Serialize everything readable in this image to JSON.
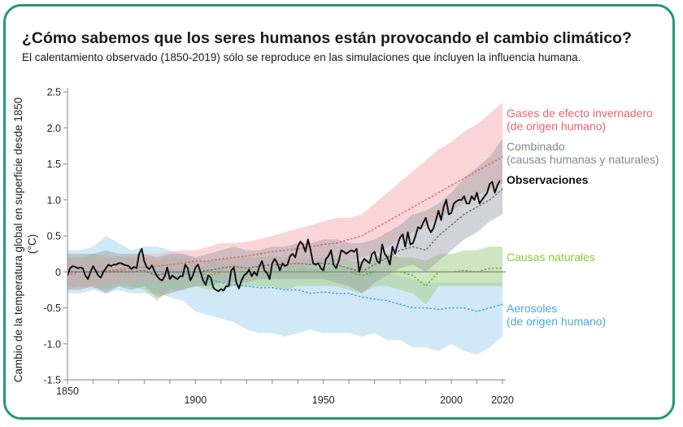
{
  "header": {
    "title": "¿Cómo sabemos que los seres humanos están provocando el cambio climático?",
    "subtitle": "El calentamiento observado (1850-2019) sólo se reproduce en las simulaciones que incluyen la influencia humana."
  },
  "colors": {
    "frame": "#23967a",
    "ghg": "#e8646b",
    "combined": "#7f8a93",
    "observations": "#111111",
    "natural": "#8dc63f",
    "aerosols": "#4aa8e0"
  },
  "chart_data": {
    "type": "line",
    "title": "¿Cómo sabemos que los seres humanos están provocando el cambio climático?",
    "xlabel": "",
    "ylabel_line1": "Cambio de la temperatura global en superficie desde 1850",
    "ylabel_line2": "(°C)",
    "xlim": [
      1850,
      2020
    ],
    "ylim": [
      -1.5,
      2.5
    ],
    "xticks": [
      1850,
      1900,
      1950,
      2000,
      2020
    ],
    "xminor_step": 10,
    "yticks": [
      -1.5,
      -1.0,
      -0.5,
      0,
      0.5,
      1.0,
      1.5,
      2.0,
      2.5
    ],
    "ytick_labels": [
      "-1.5",
      "-1.0",
      "-0.5",
      "0",
      "0.5",
      "1.0",
      "1.5",
      "2.0",
      "2.5"
    ],
    "grid": false,
    "zero_line": true,
    "band_years": [
      1850,
      1855,
      1860,
      1865,
      1870,
      1875,
      1880,
      1885,
      1890,
      1895,
      1900,
      1905,
      1910,
      1915,
      1920,
      1925,
      1930,
      1935,
      1940,
      1945,
      1950,
      1955,
      1960,
      1965,
      1970,
      1975,
      1980,
      1985,
      1990,
      1995,
      2000,
      2005,
      2010,
      2015,
      2020
    ],
    "series": [
      {
        "key": "aerosols",
        "name": "Aerosoles",
        "name_line2": "(de origen humano)",
        "style": "dotted-mean-with-band",
        "mean": [
          0.0,
          0.0,
          0.0,
          0.0,
          0.0,
          0.0,
          0.0,
          0.0,
          0.0,
          -0.02,
          -0.05,
          -0.1,
          -0.15,
          -0.18,
          -0.2,
          -0.22,
          -0.22,
          -0.25,
          -0.25,
          -0.3,
          -0.28,
          -0.3,
          -0.3,
          -0.35,
          -0.38,
          -0.4,
          -0.45,
          -0.5,
          -0.5,
          -0.52,
          -0.5,
          -0.5,
          -0.55,
          -0.5,
          -0.45
        ],
        "upper": [
          0.3,
          0.3,
          0.35,
          0.5,
          0.4,
          0.3,
          0.35,
          0.35,
          0.3,
          0.25,
          0.2,
          0.15,
          0.12,
          0.1,
          0.1,
          0.08,
          0.1,
          0.08,
          0.1,
          0.05,
          0.05,
          0.05,
          0.05,
          0.02,
          0.02,
          0.0,
          -0.05,
          -0.1,
          -0.15,
          -0.15,
          -0.15,
          -0.15,
          -0.15,
          -0.15,
          -0.15
        ],
        "lower": [
          -0.3,
          -0.3,
          -0.25,
          -0.3,
          -0.25,
          -0.3,
          -0.3,
          -0.3,
          -0.35,
          -0.4,
          -0.55,
          -0.6,
          -0.65,
          -0.7,
          -0.8,
          -0.85,
          -0.85,
          -0.9,
          -0.85,
          -0.8,
          -0.85,
          -0.85,
          -0.85,
          -0.9,
          -0.85,
          -0.95,
          -0.95,
          -1.05,
          -1.05,
          -1.1,
          -1.0,
          -1.1,
          -1.15,
          -1.05,
          -0.9
        ]
      },
      {
        "key": "natural",
        "name": "Causas naturales",
        "style": "dotted-mean-with-band",
        "mean": [
          0.0,
          0.0,
          0.0,
          0.0,
          0.02,
          0.0,
          0.0,
          -0.05,
          0.0,
          0.0,
          0.0,
          -0.05,
          0.0,
          0.0,
          0.0,
          0.0,
          0.0,
          0.0,
          0.0,
          0.0,
          0.0,
          0.0,
          0.0,
          -0.05,
          0.0,
          0.0,
          0.0,
          -0.05,
          -0.2,
          0.0,
          0.0,
          0.02,
          0.0,
          0.05,
          0.05
        ],
        "upper": [
          0.2,
          0.2,
          0.25,
          0.2,
          0.22,
          0.2,
          0.2,
          0.15,
          0.2,
          0.2,
          0.15,
          0.15,
          0.18,
          0.2,
          0.2,
          0.2,
          0.22,
          0.2,
          0.2,
          0.2,
          0.2,
          0.2,
          0.15,
          0.15,
          0.2,
          0.25,
          0.2,
          0.2,
          0.15,
          0.25,
          0.25,
          0.3,
          0.3,
          0.35,
          0.35
        ],
        "lower": [
          -0.2,
          -0.2,
          -0.22,
          -0.25,
          -0.2,
          -0.2,
          -0.25,
          -0.4,
          -0.25,
          -0.25,
          -0.2,
          -0.25,
          -0.25,
          -0.2,
          -0.2,
          -0.2,
          -0.2,
          -0.25,
          -0.2,
          -0.2,
          -0.2,
          -0.2,
          -0.25,
          -0.3,
          -0.2,
          -0.2,
          -0.25,
          -0.3,
          -0.45,
          -0.2,
          -0.2,
          -0.2,
          -0.2,
          -0.2,
          -0.2
        ]
      },
      {
        "key": "ghg",
        "name": "Gases de efecto invernadero",
        "name_line2": "(de origen humano)",
        "style": "dotted-mean-with-band",
        "mean": [
          -0.05,
          0.0,
          0.0,
          0.02,
          0.03,
          0.05,
          0.07,
          0.08,
          0.1,
          0.12,
          0.15,
          0.15,
          0.18,
          0.2,
          0.22,
          0.25,
          0.28,
          0.3,
          0.32,
          0.35,
          0.38,
          0.4,
          0.45,
          0.5,
          0.6,
          0.7,
          0.8,
          0.9,
          1.0,
          1.1,
          1.2,
          1.3,
          1.4,
          1.5,
          1.6
        ],
        "upper": [
          0.15,
          0.18,
          0.2,
          0.22,
          0.2,
          0.22,
          0.25,
          0.25,
          0.28,
          0.3,
          0.3,
          0.35,
          0.4,
          0.4,
          0.42,
          0.45,
          0.5,
          0.55,
          0.6,
          0.65,
          0.7,
          0.75,
          0.75,
          0.8,
          0.95,
          1.1,
          1.25,
          1.4,
          1.55,
          1.7,
          1.8,
          1.95,
          2.05,
          2.2,
          2.35
        ],
        "lower": [
          -0.25,
          -0.2,
          -0.2,
          -0.18,
          -0.15,
          -0.12,
          -0.1,
          -0.1,
          -0.1,
          -0.08,
          -0.05,
          -0.05,
          -0.05,
          0.0,
          0.0,
          0.0,
          0.02,
          0.05,
          0.08,
          0.1,
          0.12,
          0.15,
          0.15,
          0.2,
          0.25,
          0.35,
          0.45,
          0.55,
          0.65,
          0.75,
          0.85,
          0.95,
          1.05,
          1.15,
          1.25
        ]
      },
      {
        "key": "combined",
        "name": "Combinado",
        "name_line2": "(causas humanas y naturales)",
        "style": "dotted-mean-with-band",
        "mean": [
          0.0,
          0.0,
          0.0,
          0.0,
          0.0,
          0.0,
          0.02,
          -0.05,
          0.0,
          0.0,
          0.0,
          0.02,
          0.05,
          0.08,
          0.05,
          0.08,
          0.1,
          0.1,
          0.12,
          0.1,
          0.12,
          0.1,
          0.05,
          0.0,
          0.1,
          0.2,
          0.3,
          0.35,
          0.3,
          0.5,
          0.65,
          0.8,
          0.9,
          1.0,
          1.15
        ],
        "upper": [
          0.25,
          0.25,
          0.25,
          0.3,
          0.25,
          0.25,
          0.25,
          0.2,
          0.25,
          0.25,
          0.2,
          0.25,
          0.3,
          0.35,
          0.3,
          0.3,
          0.35,
          0.35,
          0.4,
          0.4,
          0.45,
          0.45,
          0.4,
          0.4,
          0.45,
          0.55,
          0.65,
          0.8,
          0.85,
          0.95,
          1.1,
          1.3,
          1.45,
          1.6,
          1.85
        ],
        "lower": [
          -0.25,
          -0.25,
          -0.2,
          -0.3,
          -0.2,
          -0.25,
          -0.2,
          -0.35,
          -0.3,
          -0.25,
          -0.2,
          -0.2,
          -0.15,
          -0.15,
          -0.15,
          -0.1,
          -0.1,
          -0.1,
          -0.1,
          -0.1,
          -0.1,
          -0.15,
          -0.2,
          -0.3,
          -0.15,
          -0.05,
          0.05,
          0.1,
          0.0,
          0.15,
          0.3,
          0.45,
          0.55,
          0.7,
          0.8
        ]
      }
    ],
    "observations": {
      "key": "observations",
      "name": "Observaciones",
      "years": [
        1850,
        1851,
        1852,
        1853,
        1854,
        1855,
        1856,
        1857,
        1858,
        1859,
        1860,
        1861,
        1862,
        1863,
        1864,
        1865,
        1866,
        1867,
        1868,
        1869,
        1870,
        1871,
        1872,
        1873,
        1874,
        1875,
        1876,
        1877,
        1878,
        1879,
        1880,
        1881,
        1882,
        1883,
        1884,
        1885,
        1886,
        1887,
        1888,
        1889,
        1890,
        1891,
        1892,
        1893,
        1894,
        1895,
        1896,
        1897,
        1898,
        1899,
        1900,
        1901,
        1902,
        1903,
        1904,
        1905,
        1906,
        1907,
        1908,
        1909,
        1910,
        1911,
        1912,
        1913,
        1914,
        1915,
        1916,
        1917,
        1918,
        1919,
        1920,
        1921,
        1922,
        1923,
        1924,
        1925,
        1926,
        1927,
        1928,
        1929,
        1930,
        1931,
        1932,
        1933,
        1934,
        1935,
        1936,
        1937,
        1938,
        1939,
        1940,
        1941,
        1942,
        1943,
        1944,
        1945,
        1946,
        1947,
        1948,
        1949,
        1950,
        1951,
        1952,
        1953,
        1954,
        1955,
        1956,
        1957,
        1958,
        1959,
        1960,
        1961,
        1962,
        1963,
        1964,
        1965,
        1966,
        1967,
        1968,
        1969,
        1970,
        1971,
        1972,
        1973,
        1974,
        1975,
        1976,
        1977,
        1978,
        1979,
        1980,
        1981,
        1982,
        1983,
        1984,
        1985,
        1986,
        1987,
        1988,
        1989,
        1990,
        1991,
        1992,
        1993,
        1994,
        1995,
        1996,
        1997,
        1998,
        1999,
        2000,
        2001,
        2002,
        2003,
        2004,
        2005,
        2006,
        2007,
        2008,
        2009,
        2010,
        2011,
        2012,
        2013,
        2014,
        2015,
        2016,
        2017,
        2018,
        2019
      ],
      "values": [
        -0.05,
        0.05,
        0.08,
        0.07,
        0.05,
        0.06,
        0.05,
        -0.05,
        -0.1,
        0.0,
        0.08,
        0.02,
        -0.05,
        -0.08,
        0.0,
        0.05,
        0.1,
        0.08,
        0.1,
        0.1,
        0.12,
        0.12,
        0.1,
        0.09,
        0.08,
        0.04,
        0.07,
        0.05,
        0.25,
        0.32,
        0.15,
        0.06,
        0.04,
        0.09,
        0.01,
        -0.06,
        -0.1,
        -0.12,
        -0.06,
        0.06,
        -0.1,
        -0.05,
        -0.08,
        -0.1,
        -0.06,
        -0.06,
        0.1,
        0.05,
        -0.12,
        -0.05,
        0.06,
        0.1,
        0.0,
        -0.12,
        -0.18,
        -0.05,
        -0.08,
        -0.22,
        -0.25,
        -0.27,
        -0.24,
        -0.26,
        -0.2,
        -0.2,
        0.02,
        0.06,
        -0.15,
        -0.23,
        -0.12,
        -0.05,
        -0.02,
        0.03,
        -0.06,
        0.0,
        -0.05,
        0.08,
        0.15,
        0.02,
        -0.02,
        -0.1,
        0.12,
        0.18,
        0.12,
        0.02,
        0.12,
        0.08,
        0.1,
        0.22,
        0.25,
        0.2,
        0.35,
        0.42,
        0.38,
        0.28,
        0.45,
        0.3,
        0.12,
        0.1,
        0.12,
        0.05,
        0.02,
        0.18,
        0.22,
        0.3,
        0.1,
        0.05,
        0.15,
        0.3,
        0.28,
        0.25,
        0.28,
        0.3,
        0.28,
        0.32,
        0.0,
        0.12,
        0.18,
        0.15,
        0.12,
        0.25,
        0.28,
        0.15,
        0.12,
        0.38,
        0.25,
        0.2,
        0.1,
        0.35,
        0.25,
        0.38,
        0.48,
        0.52,
        0.35,
        0.55,
        0.38,
        0.4,
        0.5,
        0.62,
        0.6,
        0.68,
        0.75,
        0.62,
        0.55,
        0.6,
        0.72,
        0.85,
        0.72,
        0.9,
        1.0,
        0.8,
        0.82,
        0.95,
        0.98,
        1.0,
        1.0,
        1.05,
        0.95,
        0.95,
        1.05,
        1.0,
        1.1,
        0.95,
        1.0,
        1.05,
        1.1,
        1.22,
        1.25,
        1.1,
        1.2,
        1.27
      ]
    },
    "legend_placement": "right"
  }
}
